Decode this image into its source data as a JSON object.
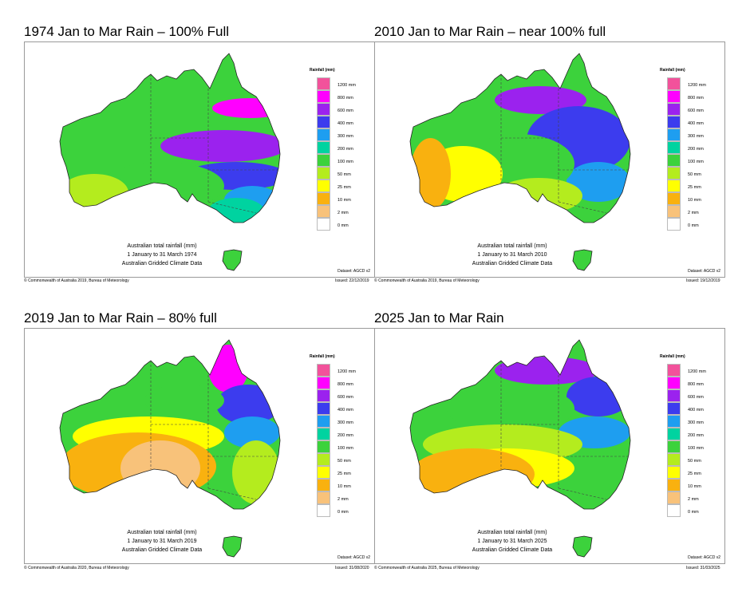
{
  "panels": [
    {
      "title": "1974 Jan to Mar Rain – 100% Full",
      "caption": [
        "Australian total rainfall (mm)",
        "1 January to 31 March 1974",
        "Australian Gridded Climate Data"
      ],
      "dataset": "Dataset: AGCD v2",
      "copyright": "© Commonwealth of Australia 2019, Bureau of Meteorology",
      "issued": "Issued: 22/12/2019",
      "rainfall_pattern": "wet"
    },
    {
      "title": "2010 Jan to Mar Rain – near 100% full",
      "caption": [
        "Australian total rainfall (mm)",
        "1 January to 31 March 2010",
        "Australian Gridded Climate Data"
      ],
      "dataset": "Dataset: AGCD v2",
      "copyright": "© Commonwealth of Australia 2019, Bureau of Meteorology",
      "issued": "Issued: 19/12/2019",
      "rainfall_pattern": "wet-east"
    },
    {
      "title": "2019 Jan to Mar Rain – 80% full",
      "caption": [
        "Australian total rainfall (mm)",
        "1 January to 31 March 2019",
        "Australian Gridded Climate Data"
      ],
      "dataset": "Dataset: AGCD v2",
      "copyright": "© Commonwealth of Australia 2020, Bureau of Meteorology",
      "issued": "Issued: 31/08/2020",
      "rainfall_pattern": "dry-interior"
    },
    {
      "title": "2025 Jan to Mar Rain",
      "caption": [
        "Australian total rainfall (mm)",
        "1 January to 31 March 2025",
        "Australian Gridded Climate Data"
      ],
      "dataset": "Dataset: AGCD v2",
      "copyright": "© Commonwealth of Australia 2025, Bureau of Meteorology",
      "issued": "Issued: 31/03/2025",
      "rainfall_pattern": "moderate"
    }
  ],
  "legend": {
    "title": "Rainfall (mm)",
    "items": [
      {
        "label": "1200 mm",
        "color": "#f2529b"
      },
      {
        "label": "800 mm",
        "color": "#ff00ff"
      },
      {
        "label": "600 mm",
        "color": "#9b22ee"
      },
      {
        "label": "400 mm",
        "color": "#3c3cee"
      },
      {
        "label": "300 mm",
        "color": "#1e9ef0"
      },
      {
        "label": "200 mm",
        "color": "#00d3a0"
      },
      {
        "label": "100 mm",
        "color": "#3cd23c"
      },
      {
        "label": "50 mm",
        "color": "#b4ec1e"
      },
      {
        "label": "25 mm",
        "color": "#ffff00"
      },
      {
        "label": "10 mm",
        "color": "#f9b10f"
      },
      {
        "label": "2 mm",
        "color": "#f8c27a"
      },
      {
        "label": "0 mm",
        "color": "#ffffff"
      }
    ]
  }
}
